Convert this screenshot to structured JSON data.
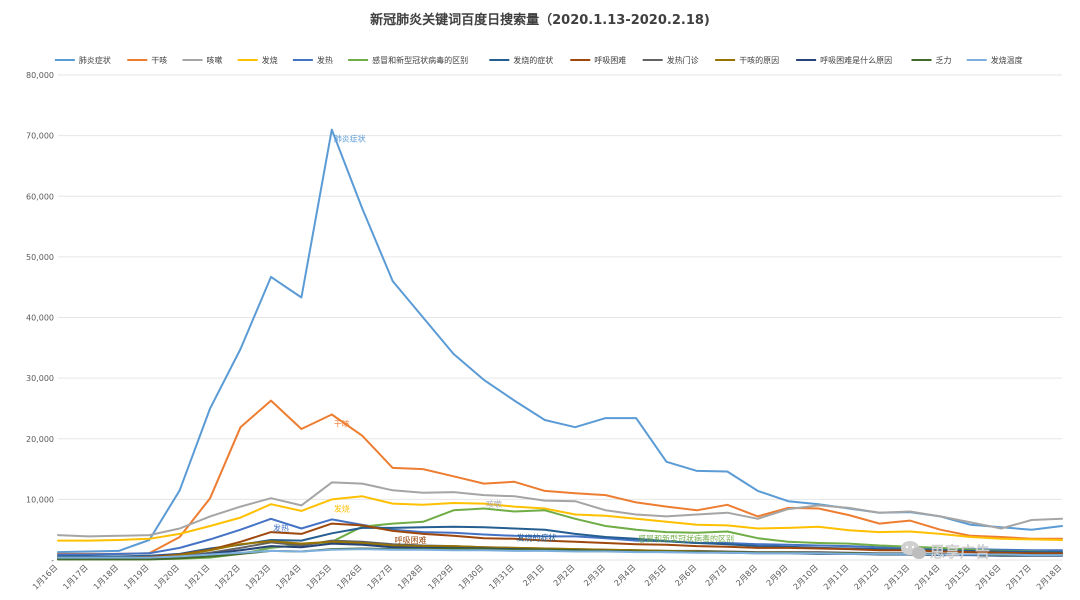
{
  "chart_data": {
    "type": "line",
    "title": "新冠肺炎关键词百度日搜索量（2020.1.13-2020.2.18)",
    "xlabel": "",
    "ylabel": "",
    "ylim": [
      0,
      80000
    ],
    "yticks": [
      0,
      10000,
      20000,
      30000,
      40000,
      50000,
      60000,
      70000,
      80000
    ],
    "ytick_labels": [
      "-",
      "10,000",
      "20,000",
      "30,000",
      "40,000",
      "50,000",
      "60,000",
      "70,000",
      "80,000"
    ],
    "grid": true,
    "legend_position": "top",
    "categories": [
      "1月16日",
      "1月17日",
      "1月18日",
      "1月19日",
      "1月20日",
      "1月21日",
      "1月22日",
      "1月23日",
      "1月24日",
      "1月25日",
      "1月26日",
      "1月27日",
      "1月28日",
      "1月29日",
      "1月30日",
      "1月31日",
      "2月1日",
      "2月2日",
      "2月3日",
      "2月4日",
      "2月5日",
      "2月6日",
      "2月7日",
      "2月8日",
      "2月9日",
      "2月10日",
      "2月11日",
      "2月12日",
      "2月13日",
      "2月14日",
      "2月15日",
      "2月16日",
      "2月17日",
      "2月18日"
    ],
    "series": [
      {
        "name": "肺炎症状",
        "color": "#5b9bd5",
        "values": [
          1300,
          1400,
          1500,
          3300,
          11500,
          25000,
          34800,
          46700,
          43300,
          71000,
          58000,
          46000,
          40000,
          34000,
          29700,
          26300,
          23100,
          21900,
          23400,
          23400,
          16200,
          14700,
          14600,
          11400,
          9700,
          9200,
          8500,
          7800,
          7900,
          7200,
          5800,
          5400,
          5000,
          5600
        ]
      },
      {
        "name": "干咳",
        "color": "#ed7d31",
        "values": [
          1000,
          1000,
          1000,
          1100,
          3800,
          10200,
          21900,
          26300,
          21600,
          24000,
          20500,
          15200,
          15000,
          13800,
          12600,
          12900,
          11400,
          11000,
          10700,
          9500,
          8800,
          8200,
          9100,
          7200,
          8600,
          8500,
          7400,
          6000,
          6500,
          5000,
          4000,
          3800,
          3500,
          3500
        ]
      },
      {
        "name": "咳嗽",
        "color": "#a5a5a5",
        "values": [
          4100,
          3900,
          4000,
          4100,
          5200,
          7200,
          8800,
          10200,
          9000,
          12800,
          12600,
          11500,
          11100,
          11200,
          10700,
          10500,
          9800,
          9700,
          8200,
          7500,
          7200,
          7500,
          7800,
          6800,
          8400,
          9000,
          8600,
          7800,
          8000,
          7200,
          6200,
          5200,
          6600,
          6800
        ]
      },
      {
        "name": "发烧",
        "color": "#ffc000",
        "values": [
          3200,
          3200,
          3300,
          3500,
          4300,
          5600,
          7000,
          9200,
          8100,
          10000,
          10500,
          9300,
          9100,
          9400,
          9300,
          8800,
          8500,
          7500,
          7300,
          6800,
          6300,
          5800,
          5700,
          5200,
          5300,
          5500,
          4900,
          4600,
          4700,
          4300,
          3800,
          3500,
          3400,
          3300
        ]
      },
      {
        "name": "发热",
        "color": "#4472c4",
        "values": [
          900,
          900,
          1000,
          1100,
          2000,
          3400,
          5000,
          6800,
          5200,
          6700,
          5800,
          5000,
          4600,
          4500,
          4200,
          4000,
          3900,
          3900,
          3600,
          3200,
          3100,
          2800,
          2800,
          2600,
          2500,
          2400,
          2300,
          2100,
          2100,
          1900,
          1800,
          1700,
          1600,
          1600
        ]
      },
      {
        "name": "感冒和新型冠状病毒的区别",
        "color": "#70ad47",
        "values": [
          100,
          100,
          100,
          100,
          200,
          400,
          1000,
          2000,
          2500,
          3000,
          5500,
          6000,
          6300,
          8200,
          8500,
          8000,
          8200,
          6800,
          5600,
          5000,
          4600,
          4500,
          4700,
          3600,
          3000,
          2800,
          2700,
          2400,
          2200,
          2000,
          1700,
          1500,
          1400,
          1300
        ]
      },
      {
        "name": "发烧的症状",
        "color": "#255e91",
        "values": [
          600,
          600,
          600,
          700,
          1000,
          1900,
          2500,
          3300,
          3200,
          4400,
          5300,
          5300,
          5400,
          5500,
          5400,
          5200,
          5000,
          4300,
          3800,
          3500,
          3100,
          2800,
          2600,
          2300,
          2200,
          2000,
          1900,
          1800,
          1800,
          1600,
          1500,
          1400,
          1300,
          1300
        ]
      },
      {
        "name": "呼吸困难",
        "color": "#9e480e",
        "values": [
          400,
          400,
          400,
          500,
          900,
          1700,
          3000,
          4600,
          4300,
          6000,
          5700,
          4800,
          4300,
          4000,
          3600,
          3500,
          3200,
          3000,
          2800,
          2600,
          2500,
          2300,
          2200,
          2000,
          2000,
          1900,
          1800,
          1600,
          1600,
          1400,
          1300,
          1200,
          1100,
          1100
        ]
      },
      {
        "name": "发热门诊",
        "color": "#636363",
        "values": [
          200,
          200,
          200,
          300,
          600,
          1200,
          2000,
          2900,
          2400,
          3200,
          3000,
          2600,
          2400,
          2300,
          2100,
          2000,
          1900,
          1800,
          1700,
          1600,
          1500,
          1500,
          1400,
          1300,
          1300,
          1300,
          1200,
          1100,
          1100,
          1000,
          900,
          900,
          800,
          800
        ]
      },
      {
        "name": "干咳的原因",
        "color": "#997300",
        "values": [
          300,
          300,
          300,
          300,
          800,
          1600,
          2600,
          3100,
          2700,
          3000,
          2800,
          2400,
          2300,
          2300,
          2100,
          2000,
          1900,
          1800,
          1700,
          1600,
          1500,
          1400,
          1300,
          1200,
          1200,
          1100,
          1100,
          1000,
          1000,
          900,
          900,
          800,
          800,
          800
        ]
      },
      {
        "name": "呼吸困难是什么原因",
        "color": "#264478",
        "values": [
          200,
          200,
          200,
          200,
          500,
          1000,
          1600,
          2300,
          2100,
          2700,
          2500,
          2100,
          2000,
          2000,
          1900,
          1800,
          1700,
          1600,
          1500,
          1400,
          1300,
          1300,
          1200,
          1100,
          1100,
          1000,
          1000,
          900,
          900,
          800,
          800,
          700,
          700,
          700
        ]
      },
      {
        "name": "乏力",
        "color": "#43682b",
        "values": [
          100,
          100,
          100,
          100,
          300,
          600,
          1000,
          1500,
          1400,
          1800,
          1900,
          1800,
          1800,
          1900,
          1800,
          1700,
          1700,
          1600,
          1500,
          1400,
          1400,
          1300,
          1300,
          1200,
          1200,
          1100,
          1100,
          1000,
          1000,
          900,
          900,
          800,
          800,
          800
        ]
      },
      {
        "name": "发烧温度",
        "color": "#7cafdd",
        "values": [
          400,
          400,
          400,
          400,
          600,
          900,
          1200,
          1500,
          1400,
          1700,
          1800,
          1700,
          1700,
          1600,
          1600,
          1500,
          1500,
          1400,
          1400,
          1300,
          1300,
          1200,
          1200,
          1100,
          1100,
          1100,
          1000,
          1000,
          1000,
          900,
          900,
          900,
          800,
          800
        ]
      }
    ],
    "annotations": [
      {
        "text": "肺炎症状",
        "series": 0,
        "index": 9,
        "color": "#5b9bd5"
      },
      {
        "text": "干咳",
        "series": 1,
        "index": 9,
        "color": "#ed7d31"
      },
      {
        "text": "咳嗽",
        "series": 2,
        "index": 14,
        "color": "#a5a5a5"
      },
      {
        "text": "发烧",
        "series": 3,
        "index": 9,
        "color": "#ffc000"
      },
      {
        "text": "发热",
        "series": 4,
        "index": 7,
        "color": "#4472c4"
      },
      {
        "text": "感冒和新型冠状病毒的区别",
        "series": 5,
        "index": 19,
        "color": "#70ad47"
      },
      {
        "text": "发烧的症状",
        "series": 6,
        "index": 15,
        "color": "#255e91"
      },
      {
        "text": "呼吸困难",
        "series": 7,
        "index": 11,
        "color": "#9e480e"
      }
    ]
  },
  "watermark": {
    "text": "思享广告",
    "icon": "wechat-icon"
  }
}
